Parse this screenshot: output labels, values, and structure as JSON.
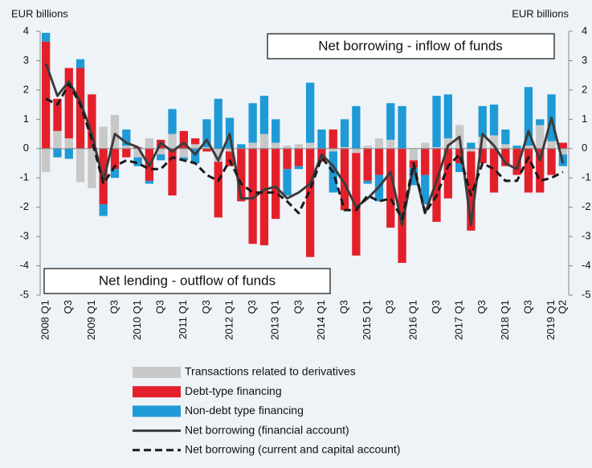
{
  "chart_data": {
    "type": "bar",
    "y_axis_label": "EUR billions",
    "y2_axis_label": "EUR billions",
    "annotations": [
      "Net borrowing - inflow of funds",
      "Net lending - outflow of funds"
    ],
    "categories": [
      "2008 Q1",
      null,
      "Q3",
      null,
      "2009 Q1",
      null,
      "Q3",
      null,
      "2010 Q1",
      null,
      "Q3",
      null,
      "2011 Q1",
      null,
      "Q3",
      null,
      "2012 Q1",
      null,
      "Q3",
      null,
      "2013 Q1",
      null,
      "Q3",
      null,
      "2014 Q1",
      null,
      "Q3",
      null,
      "2015 Q1",
      null,
      "Q3",
      null,
      "2016 Q1",
      null,
      "Q3",
      null,
      "2017 Q1",
      null,
      "Q3",
      null,
      "2018 Q1",
      null,
      "Q3",
      null,
      "2019 Q1",
      "Q2"
    ],
    "ylim": [
      -5,
      4
    ],
    "yticks": [
      4,
      3,
      2,
      1,
      0,
      -1,
      -2,
      -3,
      -4,
      -5
    ],
    "y2lim": [
      -5,
      4
    ],
    "y2ticks": [
      4,
      3,
      2,
      1,
      0,
      -1,
      -2,
      -3,
      -4,
      -5
    ],
    "series": [
      {
        "name": "Transactions related to derivatives",
        "type": "bar",
        "color": "#c8c8c8",
        "values": [
          -0.8,
          0.6,
          0.35,
          -1.15,
          -1.35,
          0.75,
          1.15,
          0.1,
          -0.3,
          0.35,
          -0.2,
          0.5,
          -0.3,
          0.15,
          0.05,
          -0.45,
          -0.1,
          0,
          0.2,
          0.5,
          0.2,
          0.1,
          0.15,
          0.2,
          0,
          -0.1,
          0.05,
          -0.15,
          0.1,
          0.35,
          0.3,
          0,
          -0.4,
          0.2,
          0.05,
          0.35,
          0.8,
          -0.1,
          0.4,
          0.45,
          0.15,
          0,
          0.1,
          0.8,
          0.25,
          -0.2
        ]
      },
      {
        "name": "Debt-type financing",
        "type": "bar",
        "color": "#e3202a",
        "values": [
          3.65,
          1.1,
          2.4,
          2.75,
          1.85,
          -1.9,
          -0.7,
          -0.3,
          0.05,
          -1.1,
          0.3,
          -1.6,
          0.6,
          0.2,
          -0.1,
          -1.9,
          -0.5,
          -1.8,
          -3.25,
          -3.3,
          -2.4,
          -0.7,
          -0.6,
          -3.7,
          -0.45,
          0.65,
          -2.1,
          -3.5,
          -1.1,
          -0.9,
          -2.7,
          -3.9,
          -0.25,
          -0.9,
          -2.5,
          -1.7,
          -0.5,
          -2.7,
          -0.5,
          -1.5,
          -0.6,
          -0.9,
          -1.5,
          -1.5,
          -0.9,
          0.2
        ]
      },
      {
        "name": "Non-debt type financing",
        "type": "bar",
        "color": "#1e9ad6",
        "values": [
          0.3,
          -0.3,
          -0.35,
          0.3,
          0,
          -0.4,
          -0.3,
          0.55,
          -0.3,
          -0.1,
          -0.2,
          0.85,
          -0.1,
          -0.5,
          0.95,
          1.7,
          1.05,
          0.15,
          1.35,
          1.3,
          0.8,
          -0.9,
          -0.1,
          2.05,
          0.65,
          -1.4,
          0.95,
          1.45,
          -0.1,
          -0.9,
          1.25,
          1.45,
          -0.6,
          -1.0,
          1.75,
          1.5,
          -0.3,
          0.2,
          1.05,
          1.05,
          0.5,
          0.1,
          2.0,
          0.2,
          1.6,
          -0.4
        ]
      },
      {
        "name": "Net borrowing (financial account)",
        "type": "line",
        "color": "#3c3c3c",
        "line_style": "solid",
        "values": [
          2.9,
          1.8,
          2.3,
          1.6,
          0.5,
          -1.1,
          0.5,
          0.2,
          0.05,
          -0.6,
          0.2,
          -0.1,
          0.2,
          -0.2,
          0.3,
          -0.4,
          0.5,
          -1.7,
          -1.7,
          -1.4,
          -1.3,
          -1.7,
          -1.5,
          -1.2,
          -0.2,
          -0.6,
          -1.2,
          -2.0,
          -1.7,
          -1.3,
          -0.8,
          -2.6,
          -0.6,
          -2.2,
          -1.1,
          0.1,
          0.4,
          -2.6,
          0.5,
          0.1,
          -0.5,
          -0.7,
          0.6,
          -0.4,
          1.05,
          -0.5
        ]
      },
      {
        "name": "Net borrowing (current and capital account)",
        "type": "line",
        "color": "#1a1a1a",
        "line_style": "dashed",
        "values": [
          1.7,
          1.5,
          2.2,
          1.5,
          0.3,
          -1.2,
          -0.6,
          -0.4,
          -0.5,
          -0.7,
          -0.7,
          -0.3,
          -0.4,
          -0.5,
          -0.9,
          -1.1,
          -0.4,
          -1.2,
          -1.5,
          -1.5,
          -1.5,
          -1.8,
          -2.2,
          -1.4,
          -0.3,
          -0.8,
          -2.1,
          -2.1,
          -1.6,
          -1.8,
          -1.7,
          -2.4,
          -0.5,
          -2.2,
          -1.6,
          -0.6,
          -0.2,
          -1.6,
          -0.5,
          -0.7,
          -1.1,
          -1.1,
          -0.3,
          -1.1,
          -1.0,
          -0.8
        ]
      }
    ]
  }
}
